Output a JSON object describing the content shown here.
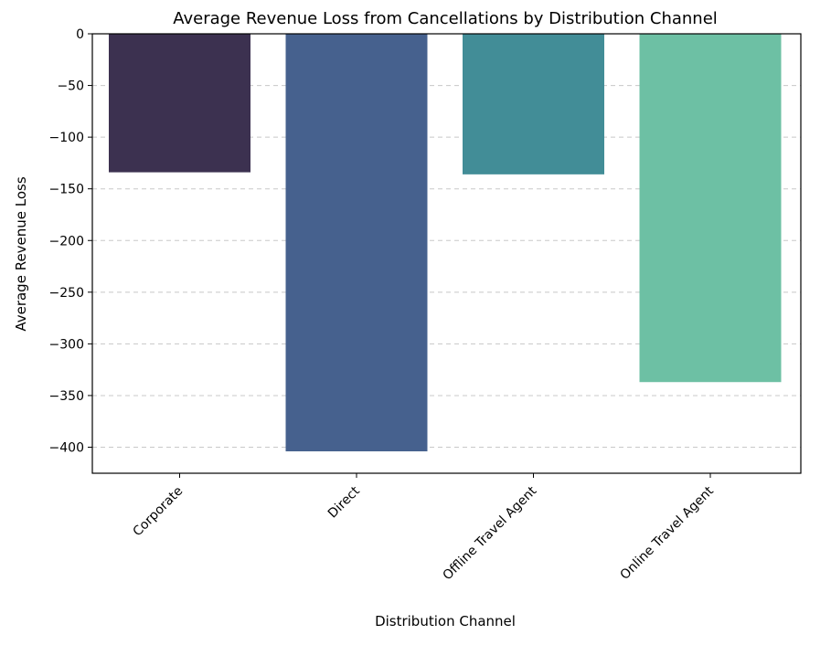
{
  "chart_data": {
    "type": "bar",
    "title": "Average Revenue Loss from Cancellations by Distribution Channel",
    "xlabel": "Distribution Channel",
    "ylabel": "Average Revenue Loss",
    "categories": [
      "Corporate",
      "Direct",
      "Offline Travel Agent",
      "Online Travel Agent"
    ],
    "values": [
      -134,
      -404,
      -136,
      -337
    ],
    "colors": [
      "#3c3150",
      "#46618e",
      "#428d97",
      "#6dc0a4"
    ],
    "ylim": [
      -425,
      0
    ],
    "yticks": [
      0,
      -50,
      -100,
      -150,
      -200,
      -250,
      -300,
      -350,
      -400
    ],
    "grid": "y-dashed",
    "legend": "none"
  }
}
